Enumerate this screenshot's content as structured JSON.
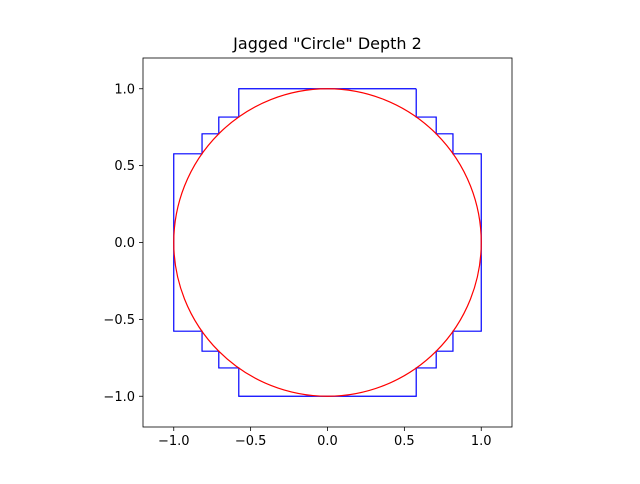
{
  "chart_data": {
    "type": "line",
    "title": "Jagged \"Circle\" Depth 2",
    "xlabel": "",
    "ylabel": "",
    "xlim": [
      -1.2,
      1.2
    ],
    "ylim": [
      -1.2,
      1.2
    ],
    "grid": false,
    "legend": "none",
    "xticks": [
      -1.0,
      -0.5,
      0.0,
      0.5,
      1.0
    ],
    "yticks": [
      -1.0,
      -0.5,
      0.0,
      0.5,
      1.0
    ],
    "xtick_labels": [
      "−1.0",
      "−0.5",
      "0.0",
      "0.5",
      "1.0"
    ],
    "ytick_labels": [
      "−1.0",
      "−0.5",
      "0.0",
      "0.5",
      "1.0"
    ],
    "series": [
      {
        "kind": "polyline",
        "color": "#0000ff",
        "x": [
          0.577,
          0.577,
          0.707,
          0.707,
          0.816,
          0.816,
          1.0,
          1.0,
          0.816,
          0.816,
          0.707,
          0.707,
          0.577,
          0.577,
          -0.577,
          -0.577,
          -0.707,
          -0.707,
          -0.816,
          -0.816,
          -1.0,
          -1.0,
          -0.816,
          -0.816,
          -0.707,
          -0.707,
          -0.577,
          -0.577,
          0.577
        ],
        "y": [
          1.0,
          0.816,
          0.816,
          0.707,
          0.707,
          0.577,
          0.577,
          -0.577,
          -0.577,
          -0.707,
          -0.707,
          -0.816,
          -0.816,
          -1.0,
          -1.0,
          -0.816,
          -0.816,
          -0.707,
          -0.707,
          -0.577,
          -0.577,
          0.577,
          0.577,
          0.707,
          0.707,
          0.816,
          0.816,
          1.0,
          1.0
        ]
      },
      {
        "kind": "circle",
        "color": "#ff0000",
        "center": [
          0.0,
          0.0
        ],
        "radius": 1.0
      }
    ]
  }
}
